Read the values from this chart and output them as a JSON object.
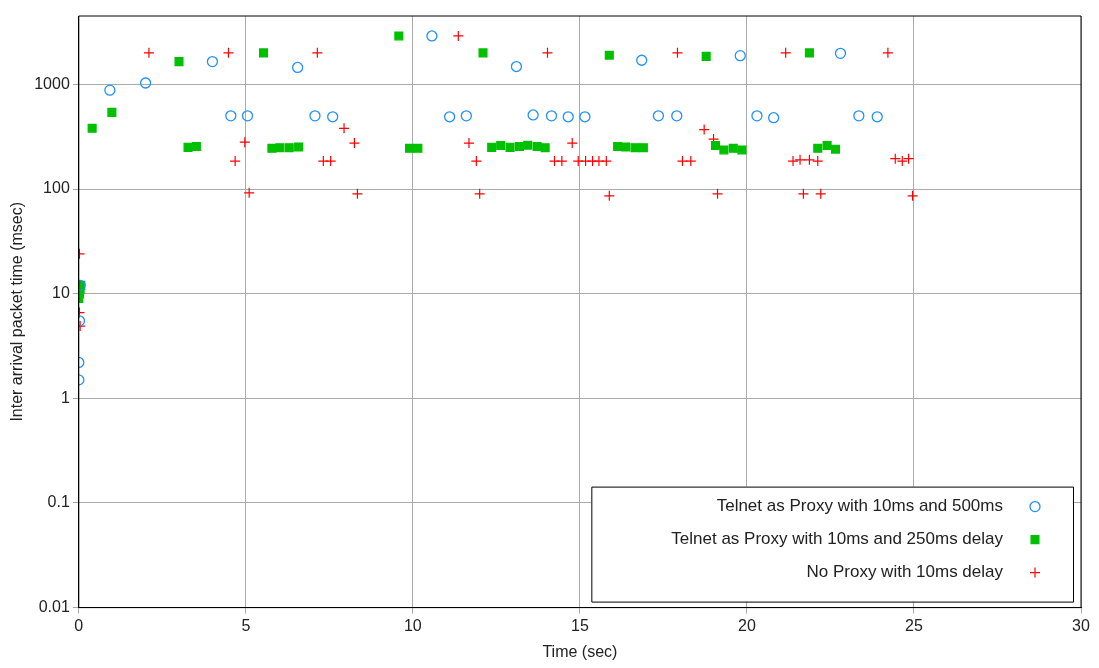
{
  "chart_data": {
    "type": "scatter",
    "xlabel": "Time (sec)",
    "ylabel": "Inter arrival packet time (msec)",
    "xlim": [
      0,
      30
    ],
    "xticks": [
      0,
      5,
      10,
      15,
      20,
      25,
      30
    ],
    "ylim": [
      0.01,
      4500
    ],
    "yticks": [
      0.01,
      0.1,
      1,
      10,
      100,
      1000
    ],
    "log": "y",
    "grid": true,
    "legend": "bottom right",
    "series": [
      {
        "name": "Telnet as Proxy with 10ms and 500ms",
        "color": "#1e90ff",
        "marker": "circle",
        "x": [
          0,
          0,
          0.02,
          0.04,
          0.93,
          2.0,
          4.0,
          4.55,
          5.05,
          6.55,
          7.07,
          7.6,
          10.57,
          11.1,
          11.6,
          13.1,
          13.6,
          14.15,
          14.65,
          15.15,
          16.85,
          17.35,
          17.9,
          19.8,
          20.3,
          20.8,
          22.8,
          23.35,
          23.9
        ],
        "values": [
          1.5,
          2.2,
          5.5,
          12,
          880,
          1030,
          1650,
          500,
          500,
          1450,
          500,
          490,
          2900,
          490,
          500,
          1480,
          510,
          500,
          490,
          490,
          1700,
          500,
          500,
          1880,
          500,
          480,
          1980,
          500,
          490
        ]
      },
      {
        "name": "Telnet as Proxy with 10ms and 250ms delay",
        "color": "#00c000",
        "marker": "square",
        "x": [
          0,
          0.02,
          0.04,
          0.06,
          0.4,
          0.99,
          3.0,
          3.27,
          3.52,
          5.53,
          5.78,
          6.02,
          6.3,
          6.58,
          9.58,
          9.9,
          10.15,
          12.1,
          12.36,
          12.63,
          12.91,
          13.19,
          13.44,
          13.72,
          13.96,
          15.88,
          16.13,
          16.37,
          16.65,
          16.9,
          18.78,
          19.06,
          19.31,
          19.59,
          19.85,
          21.87,
          22.12,
          22.4,
          22.65
        ],
        "values": [
          9,
          10,
          11,
          12,
          380,
          540,
          1650,
          250,
          255,
          2000,
          245,
          248,
          248,
          252,
          2900,
          245,
          245,
          2000,
          250,
          260,
          250,
          255,
          262,
          255,
          248,
          1900,
          255,
          252,
          248,
          248,
          1850,
          260,
          236,
          245,
          236,
          2000,
          245,
          260,
          240
        ]
      },
      {
        "name": "No Proxy with 10ms delay",
        "color": "#ff0000",
        "marker": "cross",
        "x": [
          0.02,
          0.02,
          0.04,
          2.1,
          4.48,
          4.68,
          4.97,
          5.1,
          7.14,
          7.32,
          7.54,
          7.94,
          8.25,
          8.34,
          11.36,
          11.68,
          11.9,
          12.0,
          14.03,
          14.24,
          14.46,
          14.77,
          14.95,
          15.17,
          15.38,
          15.57,
          15.79,
          15.88,
          17.92,
          18.07,
          18.32,
          18.72,
          19.0,
          19.12,
          21.16,
          21.38,
          21.59,
          21.69,
          21.87,
          22.12,
          22.21,
          24.22,
          24.44,
          24.65,
          24.84,
          24.96
        ],
        "values": [
          24,
          6.6,
          4.9,
          2000,
          2000,
          185,
          280,
          92,
          2000,
          185,
          185,
          380,
          275,
          90,
          2900,
          275,
          185,
          90,
          2000,
          185,
          185,
          275,
          185,
          185,
          185,
          185,
          185,
          86,
          2000,
          185,
          185,
          370,
          300,
          90,
          2000,
          185,
          190,
          90,
          190,
          185,
          90,
          2000,
          195,
          185,
          195,
          86
        ]
      }
    ]
  }
}
